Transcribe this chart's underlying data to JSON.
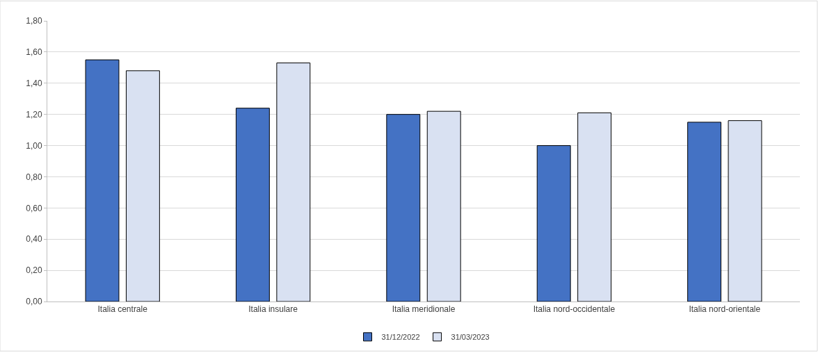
{
  "chart_data": {
    "type": "bar",
    "categories": [
      "Italia centrale",
      "Italia insulare",
      "Italia meridionale",
      "Italia nord-occidentale",
      "Italia nord-orientale"
    ],
    "series": [
      {
        "name": "31/12/2022",
        "color": "#4472c4",
        "values": [
          1.55,
          1.24,
          1.2,
          1.0,
          1.15
        ]
      },
      {
        "name": "31/03/2023",
        "color": "#d9e1f2",
        "values": [
          1.48,
          1.53,
          1.22,
          1.21,
          1.16
        ]
      }
    ],
    "ylim": [
      0,
      1.8
    ],
    "yticks": [
      {
        "value": 0,
        "label": "0,00"
      },
      {
        "value": 0.2,
        "label": "0,20"
      },
      {
        "value": 0.4,
        "label": "0,40"
      },
      {
        "value": 0.6,
        "label": "0,60"
      },
      {
        "value": 0.8,
        "label": "0,80"
      },
      {
        "value": 1.0,
        "label": "1,00"
      },
      {
        "value": 1.2,
        "label": "1,20"
      },
      {
        "value": 1.4,
        "label": "1,40"
      },
      {
        "value": 1.6,
        "label": "1,60"
      },
      {
        "value": 1.8,
        "label": "1,80"
      }
    ],
    "grid": "y",
    "legend": "bottom"
  }
}
